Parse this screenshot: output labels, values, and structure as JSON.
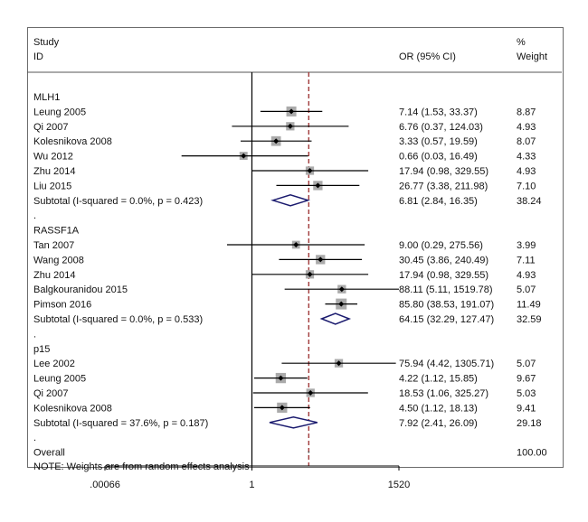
{
  "chart_data": {
    "type": "forest",
    "headers": {
      "study_line1": "Study",
      "study_line2": "ID",
      "or": "OR (95% CI)",
      "weight_line1": "%",
      "weight_line2": "Weight"
    },
    "scale": "log",
    "xlim": [
      0.00066,
      1520
    ],
    "ticks": [
      {
        "value": 0.00066,
        "label": ".00066"
      },
      {
        "value": 1,
        "label": "1"
      },
      {
        "value": 1520,
        "label": "1520"
      }
    ],
    "null_value": 1,
    "overall_estimate": 17.0,
    "colors": {
      "line": "#000000",
      "weight_box": "#aaaaaa",
      "diamond": "#1a1a6e",
      "dashed_line": "#a03a3a",
      "panel_border": "#6b6b6b"
    },
    "rows": [
      {
        "kind": "group",
        "label": "MLH1"
      },
      {
        "kind": "study",
        "label": "Leung 2005",
        "or": 7.14,
        "lo": 1.53,
        "hi": 33.37,
        "text": "7.14 (1.53, 33.37)",
        "weight": "8.87"
      },
      {
        "kind": "study",
        "label": "Qi 2007",
        "or": 6.76,
        "lo": 0.37,
        "hi": 124.03,
        "text": "6.76 (0.37, 124.03)",
        "weight": "4.93"
      },
      {
        "kind": "study",
        "label": "Kolesnikova 2008",
        "or": 3.33,
        "lo": 0.57,
        "hi": 19.59,
        "text": "3.33 (0.57, 19.59)",
        "weight": "8.07"
      },
      {
        "kind": "study",
        "label": "Wu 2012",
        "or": 0.66,
        "lo": 0.03,
        "hi": 16.49,
        "text": "0.66 (0.03, 16.49)",
        "weight": "4.33"
      },
      {
        "kind": "study",
        "label": "Zhu 2014",
        "or": 17.94,
        "lo": 0.98,
        "hi": 329.55,
        "text": "17.94 (0.98, 329.55)",
        "weight": "4.93"
      },
      {
        "kind": "study",
        "label": "Liu 2015",
        "or": 26.77,
        "lo": 3.38,
        "hi": 211.98,
        "text": "26.77 (3.38, 211.98)",
        "weight": "7.10"
      },
      {
        "kind": "subtotal",
        "label": "Subtotal  (I-squared = 0.0%, p = 0.423)",
        "or": 6.81,
        "lo": 2.84,
        "hi": 16.35,
        "text": "6.81 (2.84, 16.35)",
        "weight": "38.24"
      },
      {
        "kind": "dot",
        "label": "."
      },
      {
        "kind": "group",
        "label": "RASSF1A"
      },
      {
        "kind": "study",
        "label": "Tan 2007",
        "or": 9.0,
        "lo": 0.29,
        "hi": 275.56,
        "text": "9.00 (0.29, 275.56)",
        "weight": "3.99"
      },
      {
        "kind": "study",
        "label": "Wang 2008",
        "or": 30.45,
        "lo": 3.86,
        "hi": 240.49,
        "text": "30.45 (3.86, 240.49)",
        "weight": "7.11"
      },
      {
        "kind": "study",
        "label": "Zhu 2014",
        "or": 17.94,
        "lo": 0.98,
        "hi": 329.55,
        "text": "17.94 (0.98, 329.55)",
        "weight": "4.93"
      },
      {
        "kind": "study",
        "label": "Balgkouranidou 2015",
        "or": 88.11,
        "lo": 5.11,
        "hi": 1519.78,
        "text": "88.11 (5.11, 1519.78)",
        "weight": "5.07"
      },
      {
        "kind": "study",
        "label": "Pimson  2016",
        "or": 85.8,
        "lo": 38.53,
        "hi": 191.07,
        "text": "85.80 (38.53, 191.07)",
        "weight": "11.49"
      },
      {
        "kind": "subtotal",
        "label": "Subtotal  (I-squared = 0.0%, p = 0.533)",
        "or": 64.15,
        "lo": 32.29,
        "hi": 127.47,
        "text": "64.15 (32.29, 127.47)",
        "weight": "32.59"
      },
      {
        "kind": "dot",
        "label": "."
      },
      {
        "kind": "group",
        "label": "p15"
      },
      {
        "kind": "study",
        "label": "Lee 2002",
        "or": 75.94,
        "lo": 4.42,
        "hi": 1305.71,
        "text": "75.94 (4.42, 1305.71)",
        "weight": "5.07"
      },
      {
        "kind": "study",
        "label": "Leung 2005",
        "or": 4.22,
        "lo": 1.12,
        "hi": 15.85,
        "text": "4.22 (1.12, 15.85)",
        "weight": "9.67"
      },
      {
        "kind": "study",
        "label": "Qi 2007",
        "or": 18.53,
        "lo": 1.06,
        "hi": 325.27,
        "text": "18.53 (1.06, 325.27)",
        "weight": "5.03"
      },
      {
        "kind": "study",
        "label": "Kolesnikova 2008",
        "or": 4.5,
        "lo": 1.12,
        "hi": 18.13,
        "text": "4.50 (1.12, 18.13)",
        "weight": "9.41"
      },
      {
        "kind": "subtotal",
        "label": "Subtotal  (I-squared = 37.6%, p = 0.187)",
        "or": 7.92,
        "lo": 2.41,
        "hi": 26.09,
        "text": "7.92 (2.41, 26.09)",
        "weight": "29.18"
      },
      {
        "kind": "dot",
        "label": "."
      },
      {
        "kind": "overall",
        "label": "Overall",
        "text": "",
        "weight": "100.00"
      }
    ],
    "note": "NOTE: Weights are from random effects analysis"
  }
}
